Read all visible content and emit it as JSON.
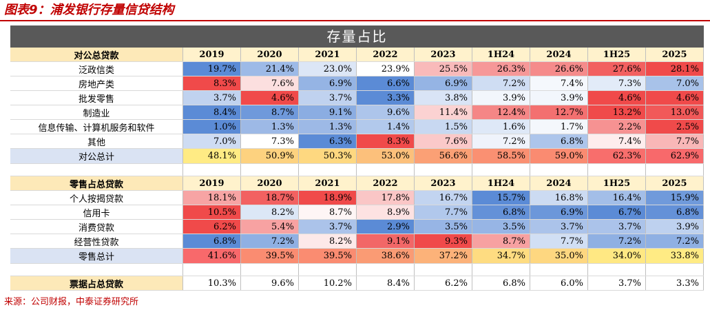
{
  "figure": {
    "title": "图表9：浦发银行存量信贷结构",
    "source": "来源：公司财报，中泰证券研究所",
    "banner": "存量占比"
  },
  "colors": {
    "title_red": "#c00000",
    "header_fill": "#fff2cc",
    "total_label_fill": "#dae3f3",
    "banner_fill": "#595959",
    "heat_low": "#5b8bd6",
    "heat_mid": "#ffffff",
    "heat_high": "#f04a4a"
  },
  "chart_data": {
    "type": "table",
    "periods": [
      "2019",
      "2020",
      "2021",
      "2022",
      "2023",
      "1H24",
      "2024",
      "1H25",
      "2025"
    ],
    "sections": [
      {
        "header": "对公总贷款",
        "rows": [
          {
            "label": "泛政信类",
            "values": [
              "19.7%",
              "21.4%",
              "23.0%",
              "23.9%",
              "25.5%",
              "26.3%",
              "26.6%",
              "27.6%",
              "28.1%"
            ]
          },
          {
            "label": "房地产类",
            "values": [
              "8.3%",
              "7.6%",
              "6.9%",
              "6.6%",
              "6.9%",
              "7.2%",
              "7.4%",
              "7.3%",
              "7.0%"
            ]
          },
          {
            "label": "批发零售",
            "values": [
              "3.7%",
              "4.6%",
              "3.7%",
              "3.3%",
              "3.8%",
              "3.9%",
              "3.9%",
              "4.6%",
              "4.6%"
            ]
          },
          {
            "label": "制造业",
            "values": [
              "8.4%",
              "8.7%",
              "9.1%",
              "9.6%",
              "11.4%",
              "12.4%",
              "12.7%",
              "13.2%",
              "13.0%"
            ]
          },
          {
            "label": "信息传输、计算机服务和软件",
            "values": [
              "1.0%",
              "1.3%",
              "1.3%",
              "1.4%",
              "1.5%",
              "1.6%",
              "1.7%",
              "2.2%",
              "2.5%"
            ]
          },
          {
            "label": "其他",
            "values": [
              "7.0%",
              "7.3%",
              "6.3%",
              "8.3%",
              "7.6%",
              "7.2%",
              "6.8%",
              "7.4%",
              "7.7%"
            ]
          }
        ],
        "total": {
          "label": "对公总计",
          "values": [
            "48.1%",
            "50.9%",
            "50.3%",
            "53.0%",
            "56.6%",
            "58.5%",
            "59.0%",
            "62.3%",
            "62.9%"
          ]
        }
      },
      {
        "header": "零售占总贷款",
        "rows": [
          {
            "label": "个人按揭贷款",
            "values": [
              "18.1%",
              "18.7%",
              "18.9%",
              "17.8%",
              "16.7%",
              "15.7%",
              "16.8%",
              "16.4%",
              "15.9%"
            ]
          },
          {
            "label": "信用卡",
            "values": [
              "10.5%",
              "8.2%",
              "8.7%",
              "8.9%",
              "7.7%",
              "6.8%",
              "6.9%",
              "6.7%",
              "6.8%"
            ]
          },
          {
            "label": "消费贷款",
            "values": [
              "6.2%",
              "5.4%",
              "3.7%",
              "2.9%",
              "3.5%",
              "3.5%",
              "3.7%",
              "3.7%",
              "3.9%"
            ]
          },
          {
            "label": "经营性贷款",
            "values": [
              "6.8%",
              "7.2%",
              "8.2%",
              "9.1%",
              "9.3%",
              "8.7%",
              "7.7%",
              "7.2%",
              "7.2%"
            ]
          }
        ],
        "total": {
          "label": "零售总计",
          "values": [
            "41.6%",
            "39.5%",
            "39.5%",
            "38.6%",
            "37.2%",
            "34.7%",
            "35.0%",
            "34.0%",
            "33.8%"
          ]
        }
      }
    ],
    "bill_row": {
      "label": "票据占总贷款",
      "values": [
        "10.3%",
        "9.6%",
        "10.2%",
        "8.4%",
        "6.2%",
        "6.8%",
        "6.0%",
        "3.7%",
        "3.3%"
      ]
    }
  }
}
